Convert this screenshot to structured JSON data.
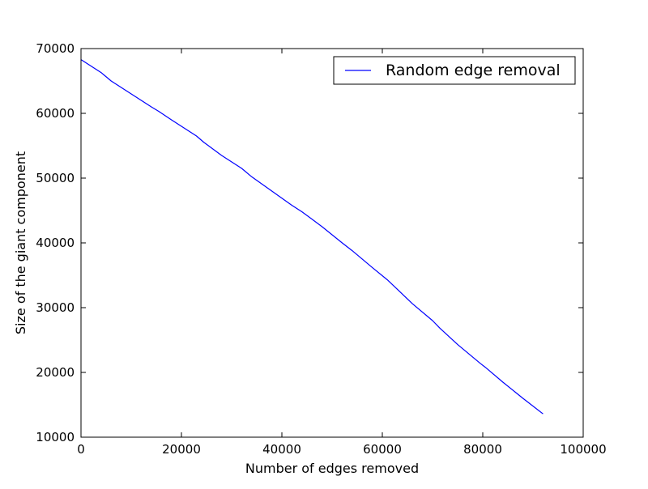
{
  "chart_data": {
    "type": "line",
    "title": "",
    "xlabel": "Number of edges removed",
    "ylabel": "Size of the giant component",
    "xlim": [
      0,
      100000
    ],
    "ylim": [
      10000,
      70000
    ],
    "x_ticks": [
      {
        "value": 0,
        "label": "0"
      },
      {
        "value": 20000,
        "label": "20000"
      },
      {
        "value": 40000,
        "label": "40000"
      },
      {
        "value": 60000,
        "label": "60000"
      },
      {
        "value": 80000,
        "label": "80000"
      },
      {
        "value": 100000,
        "label": "100000"
      }
    ],
    "y_ticks": [
      {
        "value": 10000,
        "label": "10000"
      },
      {
        "value": 20000,
        "label": "20000"
      },
      {
        "value": 30000,
        "label": "30000"
      },
      {
        "value": 40000,
        "label": "40000"
      },
      {
        "value": 50000,
        "label": "50000"
      },
      {
        "value": 60000,
        "label": "60000"
      },
      {
        "value": 70000,
        "label": "70000"
      }
    ],
    "grid": false,
    "legend_position": "top-right",
    "series": [
      {
        "name": "Random edge removal",
        "color": "#0000ff",
        "x": [
          0,
          2000,
          4000,
          6000,
          8000,
          10000,
          12000,
          14000,
          15500,
          18000,
          20000,
          23000,
          24500,
          28000,
          32000,
          34000,
          38000,
          42000,
          44000,
          48000,
          52000,
          54000,
          58000,
          61000,
          62500,
          66000,
          70000,
          71500,
          75000,
          79500,
          80500,
          84000,
          88000,
          92000
        ],
        "y": [
          68300,
          67300,
          66300,
          65000,
          64000,
          63000,
          62000,
          61000,
          60300,
          59000,
          58000,
          56500,
          55500,
          53500,
          51500,
          50200,
          48000,
          45800,
          44800,
          42500,
          40000,
          38800,
          36200,
          34300,
          33200,
          30600,
          28000,
          26800,
          24300,
          21400,
          20800,
          18500,
          16000,
          13600
        ]
      }
    ]
  }
}
